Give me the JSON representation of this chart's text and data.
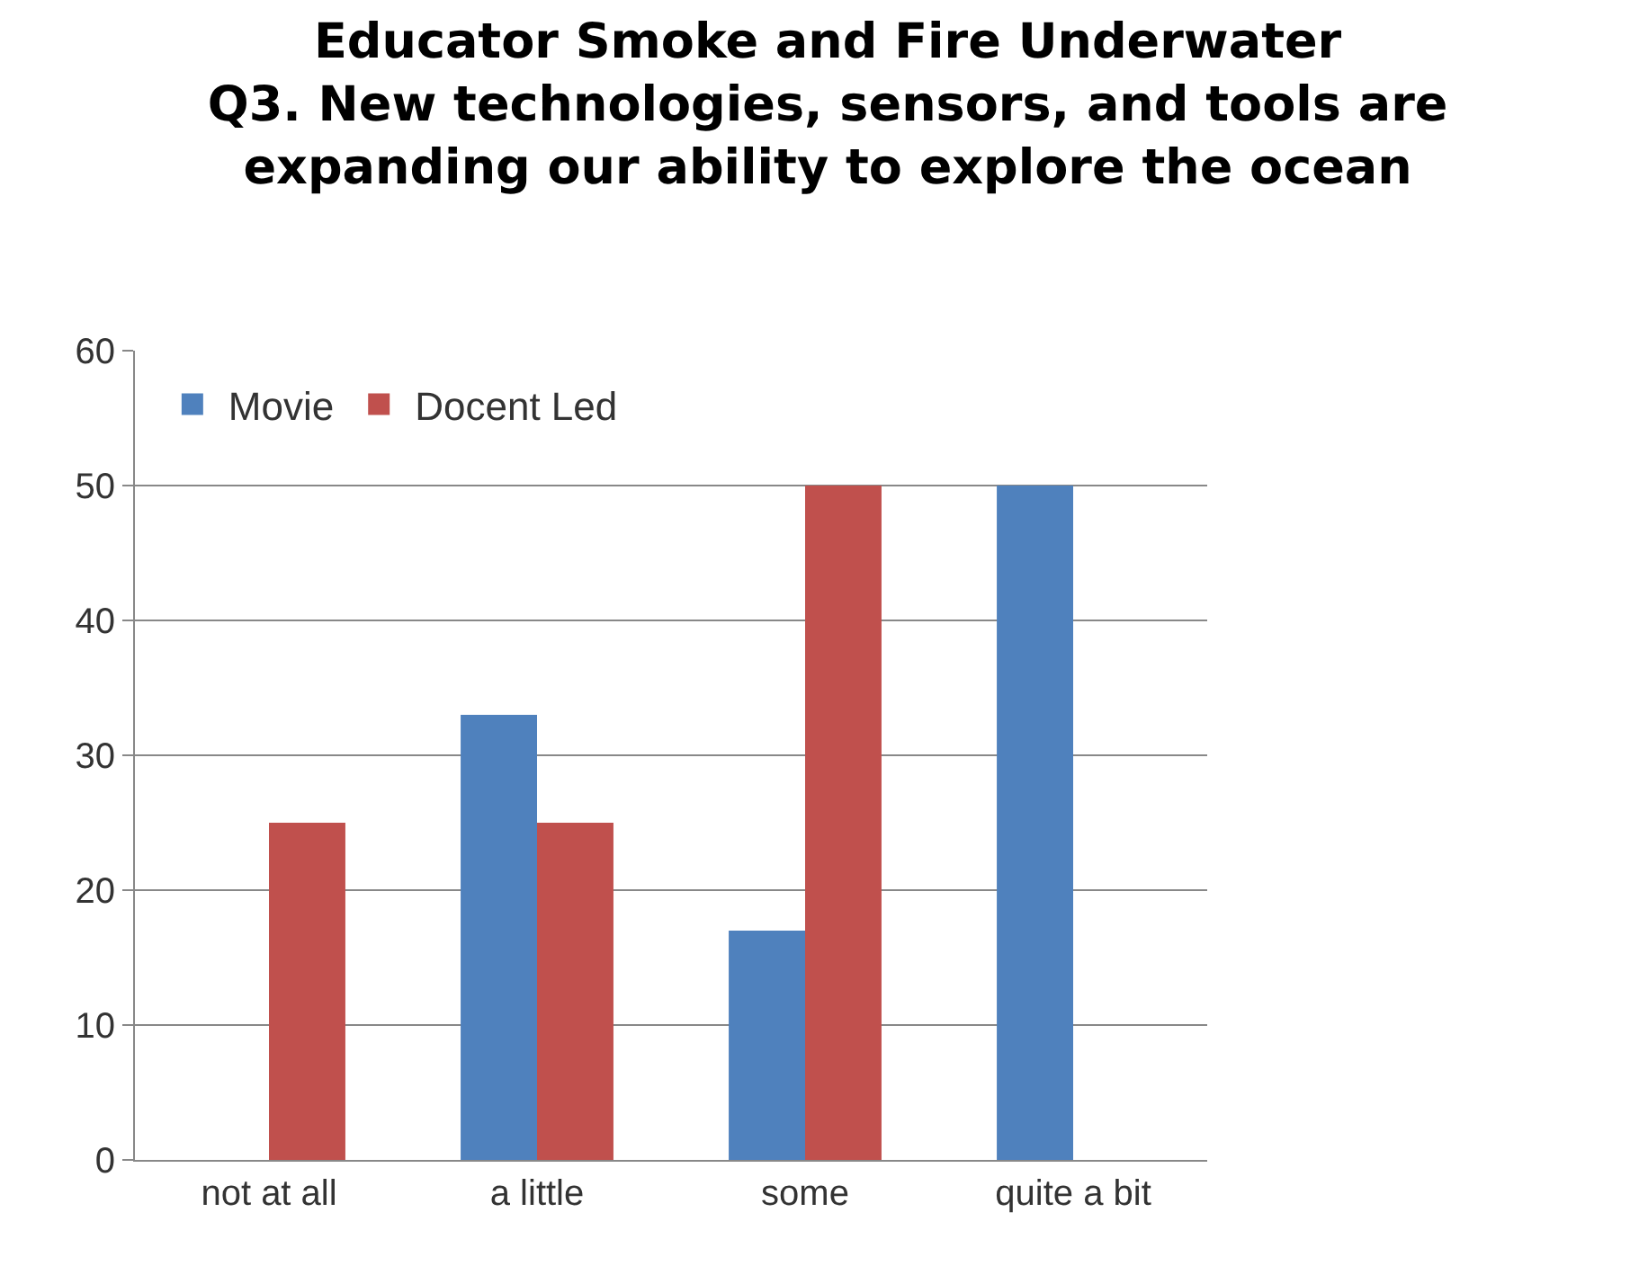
{
  "chart_data": {
    "type": "bar",
    "title": "Educator Smoke and Fire Underwater\nQ3. New technologies, sensors, and tools are\nexpanding our ability to explore the ocean",
    "categories": [
      "not at all",
      "a little",
      "some",
      "quite a bit"
    ],
    "series": [
      {
        "name": "Movie",
        "color": "#4f81bd",
        "values": [
          0,
          33,
          17,
          50
        ]
      },
      {
        "name": "Docent Led",
        "color": "#c0504d",
        "values": [
          25,
          25,
          50,
          0
        ]
      }
    ],
    "ylim": [
      0,
      60
    ],
    "yticks": [
      0,
      10,
      20,
      30,
      40,
      50,
      60
    ],
    "grid": "y",
    "legend": "top left"
  }
}
